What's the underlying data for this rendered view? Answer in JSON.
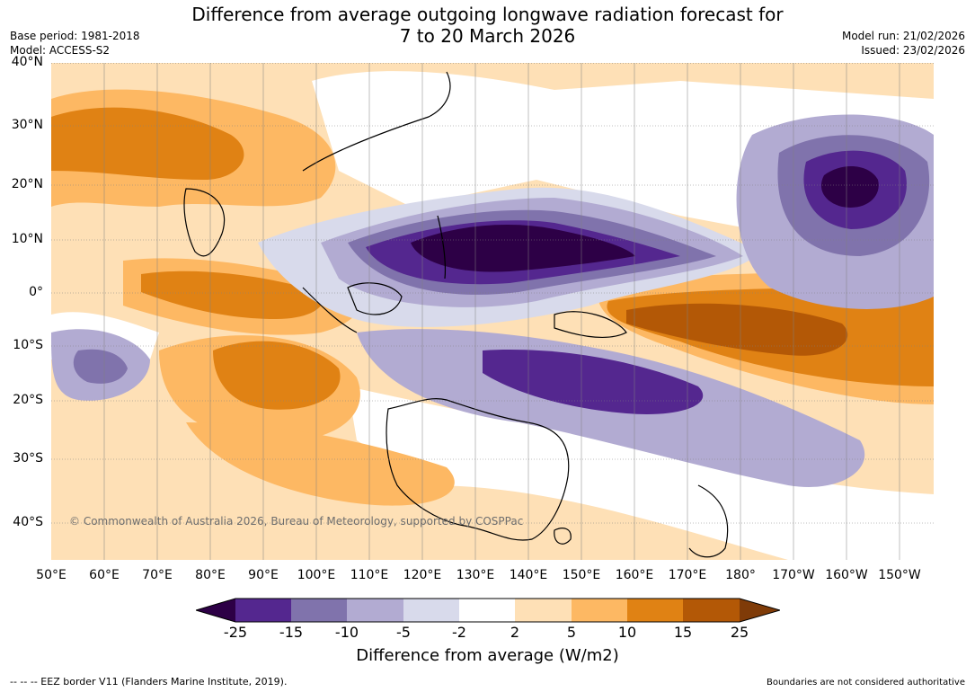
{
  "title": {
    "line1": "Difference from average outgoing longwave radiation forecast for",
    "line2": "7 to 20 March 2026"
  },
  "meta": {
    "base_period": "Base period: 1981-2018",
    "model": "Model: ACCESS-S2",
    "model_run": "Model run: 21/02/2026",
    "issued": "Issued: 23/02/2026"
  },
  "map": {
    "lon_labels": [
      "50°E",
      "60°E",
      "70°E",
      "80°E",
      "90°E",
      "100°E",
      "110°E",
      "120°E",
      "130°E",
      "140°E",
      "150°E",
      "160°E",
      "170°E",
      "180°",
      "170°W",
      "160°W",
      "150°W"
    ],
    "lat_labels": [
      "40°N",
      "30°N",
      "20°N",
      "10°N",
      "0°",
      "10°S",
      "20°S",
      "30°S",
      "40°S"
    ],
    "copyright": "© Commonwealth of Australia 2026, Bureau of Meteorology, supported by COSPPac"
  },
  "colorbar": {
    "label": "Difference from average (W/m2)",
    "ticks": [
      "-25",
      "-15",
      "-10",
      "-5",
      "-2",
      "2",
      "5",
      "10",
      "15",
      "25"
    ],
    "colors": [
      "#2d0046",
      "#54278f",
      "#8073ac",
      "#b2abd2",
      "#d8daeb",
      "#ffffff",
      "#fee0b6",
      "#fdb863",
      "#e08214",
      "#b35806",
      "#7f3b08"
    ]
  },
  "footer": {
    "left": "--  --  -- EEZ border V11 (Flanders Marine Institute, 2019).",
    "right": "Boundaries are not considered authoritative"
  }
}
